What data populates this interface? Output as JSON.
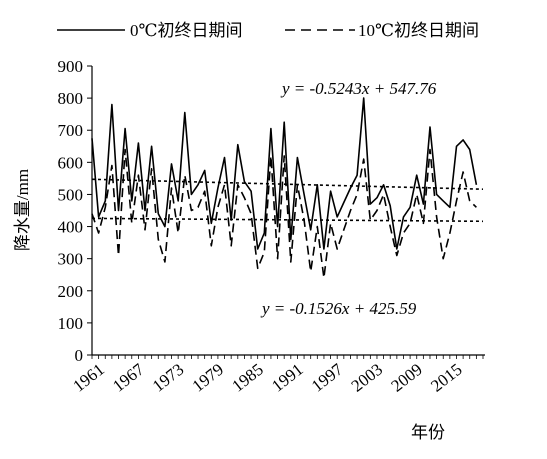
{
  "chart_data": {
    "type": "line",
    "xlabel": "年份",
    "ylabel": "降水量/mm",
    "ylim": [
      0,
      900
    ],
    "yticks": [
      0,
      100,
      200,
      300,
      400,
      500,
      600,
      700,
      800,
      900
    ],
    "xlim": [
      1961,
      2020
    ],
    "xticks": [
      1961,
      1967,
      1973,
      1979,
      1985,
      1991,
      1997,
      2003,
      2009,
      2015
    ],
    "xtick_labels": [
      "1961",
      "1967",
      "1973",
      "1979",
      "1985",
      "1991",
      "1997",
      "2003",
      "2009",
      "2015"
    ],
    "legend_position": "top",
    "x": [
      1961,
      1962,
      1963,
      1964,
      1965,
      1966,
      1967,
      1968,
      1969,
      1970,
      1971,
      1972,
      1973,
      1974,
      1975,
      1976,
      1977,
      1978,
      1979,
      1980,
      1981,
      1982,
      1983,
      1984,
      1985,
      1986,
      1987,
      1988,
      1989,
      1990,
      1991,
      1992,
      1993,
      1994,
      1995,
      1996,
      1997,
      1998,
      1999,
      2000,
      2001,
      2002,
      2003,
      2004,
      2005,
      2006,
      2007,
      2008,
      2009,
      2010,
      2011,
      2012,
      2013,
      2014,
      2015,
      2016,
      2017,
      2018,
      2019,
      2020
    ],
    "series": [
      {
        "name": "0℃初终日期间",
        "style": "solid",
        "color": "#000000",
        "values": [
          675,
          430,
          480,
          780,
          450,
          705,
          480,
          660,
          450,
          650,
          440,
          400,
          595,
          480,
          755,
          500,
          530,
          575,
          410,
          520,
          615,
          420,
          655,
          540,
          510,
          330,
          380,
          705,
          400,
          725,
          360,
          615,
          500,
          390,
          530,
          330,
          510,
          430,
          475,
          520,
          560,
          800,
          470,
          490,
          530,
          465,
          330,
          430,
          460,
          560,
          470,
          710,
          500,
          480,
          460,
          650,
          670,
          640,
          530,
          null
        ]
      },
      {
        "name": "10℃初终日期间",
        "style": "dashed",
        "color": "#000000",
        "values": [
          440,
          380,
          460,
          590,
          310,
          640,
          410,
          560,
          390,
          580,
          360,
          290,
          520,
          380,
          560,
          450,
          460,
          510,
          340,
          460,
          530,
          340,
          530,
          490,
          440,
          270,
          320,
          620,
          300,
          620,
          290,
          530,
          420,
          260,
          400,
          240,
          410,
          330,
          390,
          450,
          500,
          610,
          420,
          450,
          500,
          400,
          310,
          380,
          410,
          500,
          410,
          640,
          430,
          300,
          380,
          480,
          570,
          480,
          460,
          null
        ]
      }
    ],
    "trendlines": [
      {
        "label": "y = -0.5243x + 547.76",
        "slope": -0.5243,
        "intercept": 547.76,
        "series": "0℃初终日期间"
      },
      {
        "label": "y = -0.1526x + 425.59",
        "slope": -0.1526,
        "intercept": 425.59,
        "series": "10℃初终日期间"
      }
    ]
  },
  "legend": {
    "item0_label": "0℃初终日期间",
    "item1_label": "10℃初终日期间"
  },
  "equations": {
    "upper": "y = -0.5243x + 547.76",
    "lower": "y = -0.1526x + 425.59"
  }
}
